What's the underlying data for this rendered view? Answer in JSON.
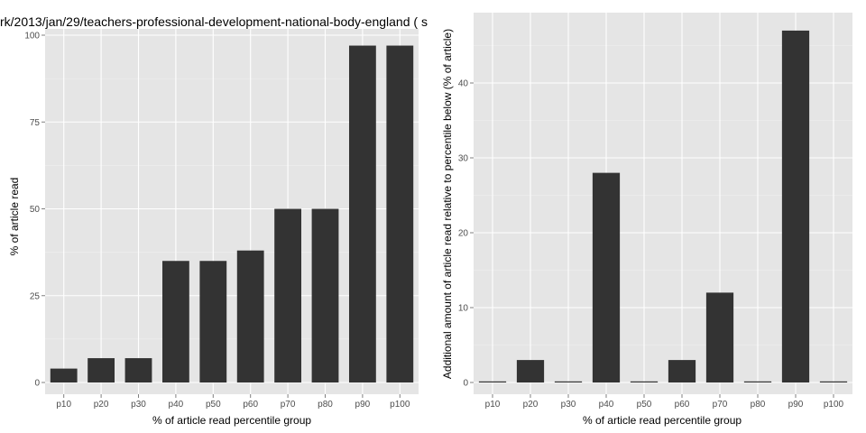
{
  "chart_data": [
    {
      "type": "bar",
      "title": "rk/2013/jan/29/teachers-professional-development-national-body-england ( s",
      "xlabel": "% of article read percentile group",
      "ylabel": "% of article read",
      "categories": [
        "p10",
        "p20",
        "p30",
        "p40",
        "p50",
        "p60",
        "p70",
        "p80",
        "p90",
        "p100"
      ],
      "values": [
        4,
        7,
        7,
        35,
        35,
        38,
        50,
        50,
        97,
        97
      ],
      "ylim": [
        0,
        101
      ],
      "yticks": [
        0,
        25,
        50,
        75,
        100
      ],
      "grid": true,
      "bar_color": "#333333",
      "panel_color": "#e5e5e5"
    },
    {
      "type": "bar",
      "title": "",
      "xlabel": "% of article read percentile group",
      "ylabel": "Additional amount of article read relative to percentile below (% of article)",
      "categories": [
        "p10",
        "p20",
        "p30",
        "p40",
        "p50",
        "p60",
        "p70",
        "p80",
        "p90",
        "p100"
      ],
      "values": [
        0,
        3,
        0,
        28,
        0,
        3,
        12,
        0,
        47,
        0
      ],
      "ylim": [
        0,
        48
      ],
      "yticks": [
        0,
        10,
        20,
        30,
        40
      ],
      "grid": true,
      "bar_color": "#333333",
      "panel_color": "#e5e5e5"
    }
  ]
}
